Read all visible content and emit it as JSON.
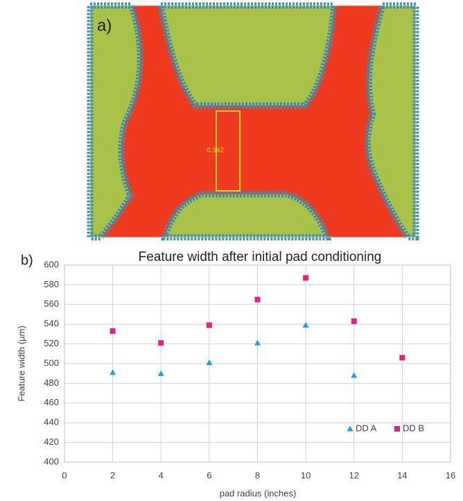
{
  "panel_a": {
    "label": "a)",
    "measurement": "0.542"
  },
  "panel_b": {
    "label": "b)"
  },
  "chart_data": {
    "type": "scatter",
    "title": "Feature width after initial pad conditioning",
    "x_label": "pad radius (inches)",
    "y_label": "Feature width (µm)",
    "series": [
      {
        "name": "DD A",
        "color": "#1ba1d4",
        "marker": "triangle",
        "x": [
          2,
          4,
          6,
          8,
          10,
          12
        ],
        "values": [
          491,
          490,
          501,
          521,
          539,
          488
        ]
      },
      {
        "name": "DD B",
        "color": "#e0237f",
        "marker": "square",
        "x": [
          2,
          4,
          6,
          8,
          10,
          12,
          14
        ],
        "values": [
          533,
          521,
          539,
          565,
          587,
          543,
          506
        ]
      }
    ],
    "xlim": [
      0,
      16
    ],
    "xticks": [
      0,
      2,
      4,
      6,
      8,
      10,
      12,
      14,
      16
    ],
    "ylim": [
      400,
      600
    ],
    "yticks": [
      400,
      420,
      440,
      460,
      480,
      500,
      520,
      540,
      560,
      580,
      600
    ],
    "grid": true,
    "legend": "lower-right"
  }
}
